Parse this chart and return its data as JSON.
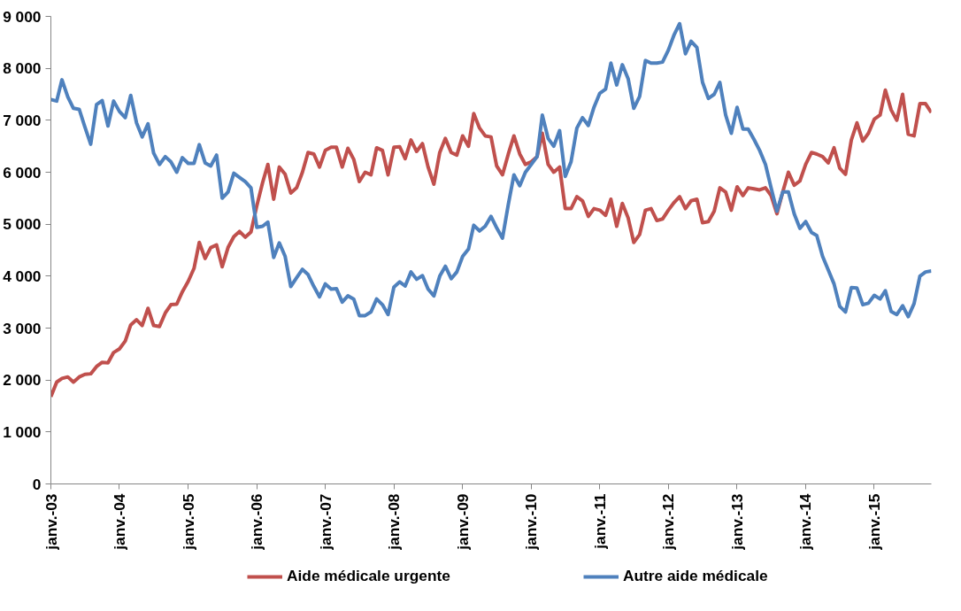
{
  "chart_data": {
    "type": "line",
    "x": [
      "2003-01",
      "2003-02",
      "2003-03",
      "2003-04",
      "2003-05",
      "2003-06",
      "2003-07",
      "2003-08",
      "2003-09",
      "2003-10",
      "2003-11",
      "2003-12",
      "2004-01",
      "2004-02",
      "2004-03",
      "2004-04",
      "2004-05",
      "2004-06",
      "2004-07",
      "2004-08",
      "2004-09",
      "2004-10",
      "2004-11",
      "2004-12",
      "2005-01",
      "2005-02",
      "2005-03",
      "2005-04",
      "2005-05",
      "2005-06",
      "2005-07",
      "2005-08",
      "2005-09",
      "2005-10",
      "2005-11",
      "2005-12",
      "2006-01",
      "2006-02",
      "2006-03",
      "2006-04",
      "2006-05",
      "2006-06",
      "2006-07",
      "2006-08",
      "2006-09",
      "2006-10",
      "2006-11",
      "2006-12",
      "2007-01",
      "2007-02",
      "2007-03",
      "2007-04",
      "2007-05",
      "2007-06",
      "2007-07",
      "2007-08",
      "2007-09",
      "2007-10",
      "2007-11",
      "2007-12",
      "2008-01",
      "2008-02",
      "2008-03",
      "2008-04",
      "2008-05",
      "2008-06",
      "2008-07",
      "2008-08",
      "2008-09",
      "2008-10",
      "2008-11",
      "2008-12",
      "2009-01",
      "2009-02",
      "2009-03",
      "2009-04",
      "2009-05",
      "2009-06",
      "2009-07",
      "2009-08",
      "2009-09",
      "2009-10",
      "2009-11",
      "2009-12",
      "2010-01",
      "2010-02",
      "2010-03",
      "2010-04",
      "2010-05",
      "2010-06",
      "2010-07",
      "2010-08",
      "2010-09",
      "2010-10",
      "2010-11",
      "2010-12",
      "2011-01",
      "2011-02",
      "2011-03",
      "2011-04",
      "2011-05",
      "2011-06",
      "2011-07",
      "2011-08",
      "2011-09",
      "2011-10",
      "2011-11",
      "2011-12",
      "2012-01",
      "2012-02",
      "2012-03",
      "2012-04",
      "2012-05",
      "2012-06",
      "2012-07",
      "2012-08",
      "2012-09",
      "2012-10",
      "2012-11",
      "2012-12",
      "2013-01",
      "2013-02",
      "2013-03",
      "2013-04",
      "2013-05",
      "2013-06",
      "2013-07",
      "2013-08",
      "2013-09",
      "2013-10",
      "2013-11",
      "2013-12",
      "2014-01",
      "2014-02",
      "2014-03",
      "2014-04",
      "2014-05",
      "2014-06",
      "2014-07",
      "2014-08",
      "2014-09",
      "2014-10",
      "2014-11",
      "2014-12",
      "2015-01",
      "2015-02",
      "2015-03",
      "2015-04",
      "2015-05",
      "2015-06",
      "2015-07",
      "2015-08",
      "2015-09",
      "2015-10",
      "2015-11"
    ],
    "series": [
      {
        "name": "Aide médicale urgente",
        "color": "#c0504d",
        "values": [
          1680,
          1960,
          2030,
          2060,
          1960,
          2060,
          2110,
          2120,
          2260,
          2340,
          2330,
          2530,
          2600,
          2750,
          3060,
          3160,
          3050,
          3380,
          3050,
          3030,
          3290,
          3450,
          3460,
          3700,
          3900,
          4150,
          4650,
          4340,
          4550,
          4600,
          4180,
          4550,
          4760,
          4860,
          4750,
          4850,
          5350,
          5800,
          6150,
          5480,
          6100,
          5960,
          5600,
          5700,
          6000,
          6380,
          6350,
          6100,
          6420,
          6480,
          6480,
          6100,
          6460,
          6250,
          5820,
          6000,
          5950,
          6470,
          6420,
          5950,
          6480,
          6490,
          6260,
          6620,
          6400,
          6550,
          6100,
          5770,
          6380,
          6650,
          6380,
          6330,
          6700,
          6500,
          7130,
          6850,
          6700,
          6680,
          6120,
          5950,
          6350,
          6700,
          6350,
          6150,
          6200,
          6300,
          6750,
          6150,
          6000,
          6100,
          5300,
          5300,
          5530,
          5450,
          5150,
          5300,
          5270,
          5170,
          5480,
          4960,
          5400,
          5120,
          4650,
          4800,
          5270,
          5300,
          5070,
          5100,
          5270,
          5420,
          5530,
          5300,
          5450,
          5480,
          5030,
          5050,
          5250,
          5700,
          5620,
          5270,
          5720,
          5550,
          5700,
          5680,
          5660,
          5700,
          5550,
          5200,
          5620,
          6000,
          5750,
          5830,
          6150,
          6380,
          6350,
          6300,
          6180,
          6470,
          6080,
          5960,
          6620,
          6950,
          6600,
          6750,
          7020,
          7100,
          7580,
          7200,
          7000,
          7500,
          6730,
          6700,
          7320,
          7320,
          7150
        ]
      },
      {
        "name": "Autre aide médicale",
        "color": "#4f81bd",
        "values": [
          7400,
          7370,
          7780,
          7450,
          7230,
          7210,
          6870,
          6540,
          7300,
          7380,
          6890,
          7370,
          7170,
          7050,
          7480,
          6950,
          6680,
          6930,
          6370,
          6150,
          6300,
          6200,
          6000,
          6280,
          6170,
          6170,
          6530,
          6180,
          6120,
          6330,
          5500,
          5620,
          5980,
          5900,
          5820,
          5700,
          4940,
          4960,
          5040,
          4360,
          4640,
          4380,
          3800,
          3970,
          4130,
          4030,
          3800,
          3600,
          3850,
          3750,
          3760,
          3500,
          3620,
          3560,
          3240,
          3240,
          3310,
          3560,
          3450,
          3260,
          3790,
          3890,
          3810,
          4080,
          3940,
          4010,
          3750,
          3620,
          4000,
          4190,
          3950,
          4080,
          4380,
          4520,
          4980,
          4870,
          4960,
          5150,
          4930,
          4730,
          5380,
          5950,
          5740,
          6000,
          6150,
          6300,
          7100,
          6650,
          6500,
          6800,
          5920,
          6200,
          6850,
          7050,
          6900,
          7250,
          7520,
          7600,
          8100,
          7680,
          8070,
          7800,
          7230,
          7460,
          8150,
          8100,
          8100,
          8120,
          8350,
          8650,
          8860,
          8280,
          8520,
          8400,
          7730,
          7420,
          7500,
          7730,
          7100,
          6750,
          7250,
          6830,
          6830,
          6630,
          6420,
          6150,
          5700,
          5250,
          5620,
          5620,
          5200,
          4920,
          5050,
          4840,
          4780,
          4380,
          4120,
          3850,
          3420,
          3310,
          3780,
          3770,
          3450,
          3480,
          3630,
          3560,
          3720,
          3320,
          3260,
          3430,
          3220,
          3470,
          4000,
          4080,
          4100
        ]
      }
    ],
    "xlim": [
      "2003-01",
      "2015-11"
    ],
    "xticks": [
      {
        "value": "2003-01",
        "label": "janv.-03"
      },
      {
        "value": "2004-01",
        "label": "janv.-04"
      },
      {
        "value": "2005-01",
        "label": "janv.-05"
      },
      {
        "value": "2006-01",
        "label": "janv.-06"
      },
      {
        "value": "2007-01",
        "label": "janv.-07"
      },
      {
        "value": "2008-01",
        "label": "janv.-08"
      },
      {
        "value": "2009-01",
        "label": "janv.-09"
      },
      {
        "value": "2010-01",
        "label": "janv.-10"
      },
      {
        "value": "2011-01",
        "label": "janv.-11"
      },
      {
        "value": "2012-01",
        "label": "janv.-12"
      },
      {
        "value": "2013-01",
        "label": "janv.-13"
      },
      {
        "value": "2014-01",
        "label": "janv.-14"
      },
      {
        "value": "2015-01",
        "label": "janv.-15"
      }
    ],
    "ylim": [
      0,
      9000
    ],
    "yticks": [
      0,
      {
        "value": 1000,
        "label": "1 000"
      },
      {
        "value": 2000,
        "label": "2 000"
      },
      {
        "value": 3000,
        "label": "3 000"
      },
      {
        "value": 4000,
        "label": "4 000"
      },
      {
        "value": 5000,
        "label": "5 000"
      },
      {
        "value": 6000,
        "label": "6 000"
      },
      {
        "value": 7000,
        "label": "7 000"
      },
      {
        "value": 8000,
        "label": "8 000"
      },
      {
        "value": 9000,
        "label": "9 000"
      }
    ],
    "grid": false,
    "legend": "bottom",
    "marker": "none",
    "line_style": "solid"
  }
}
